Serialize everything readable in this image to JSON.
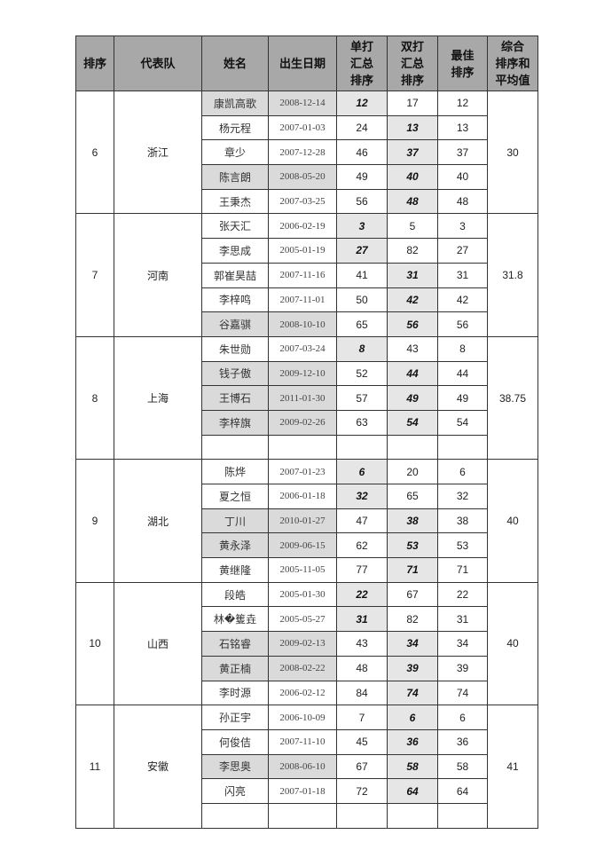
{
  "headers": [
    "排序",
    "代表队",
    "姓名",
    "出生日期",
    "单打\n汇总\n排序",
    "双打\n汇总\n排序",
    "最佳\n排序",
    "综合\n排序和\n平均值"
  ],
  "groups": [
    {
      "rank": "6",
      "team": "浙江",
      "average": "30",
      "players": [
        {
          "name": "康凯高歌",
          "birth": "2008-12-14",
          "singles": "12",
          "doubles": "17",
          "best": "12",
          "shaded": true,
          "best_of": "singles"
        },
        {
          "name": "杨元程",
          "birth": "2007-01-03",
          "singles": "24",
          "doubles": "13",
          "best": "13",
          "shaded": false,
          "best_of": "doubles"
        },
        {
          "name": "章少",
          "birth": "2007-12-28",
          "singles": "46",
          "doubles": "37",
          "best": "37",
          "shaded": false,
          "best_of": "doubles"
        },
        {
          "name": "陈言朗",
          "birth": "2008-05-20",
          "singles": "49",
          "doubles": "40",
          "best": "40",
          "shaded": true,
          "best_of": "doubles"
        },
        {
          "name": "王秉杰",
          "birth": "2007-03-25",
          "singles": "56",
          "doubles": "48",
          "best": "48",
          "shaded": false,
          "best_of": "doubles"
        }
      ]
    },
    {
      "rank": "7",
      "team": "河南",
      "average": "31.8",
      "players": [
        {
          "name": "张天汇",
          "birth": "2006-02-19",
          "singles": "3",
          "doubles": "5",
          "best": "3",
          "shaded": false,
          "best_of": "singles"
        },
        {
          "name": "李思成",
          "birth": "2005-01-19",
          "singles": "27",
          "doubles": "82",
          "best": "27",
          "shaded": false,
          "best_of": "singles"
        },
        {
          "name": "郭崔昊喆",
          "birth": "2007-11-16",
          "singles": "41",
          "doubles": "31",
          "best": "31",
          "shaded": false,
          "best_of": "doubles"
        },
        {
          "name": "李梓鸣",
          "birth": "2007-11-01",
          "singles": "50",
          "doubles": "42",
          "best": "42",
          "shaded": false,
          "best_of": "doubles"
        },
        {
          "name": "谷嘉骐",
          "birth": "2008-10-10",
          "singles": "65",
          "doubles": "56",
          "best": "56",
          "shaded": true,
          "best_of": "doubles"
        }
      ]
    },
    {
      "rank": "8",
      "team": "上海",
      "average": "38.75",
      "players": [
        {
          "name": "朱世勋",
          "birth": "2007-03-24",
          "singles": "8",
          "doubles": "43",
          "best": "8",
          "shaded": false,
          "best_of": "singles"
        },
        {
          "name": "钱子傲",
          "birth": "2009-12-10",
          "singles": "52",
          "doubles": "44",
          "best": "44",
          "shaded": true,
          "best_of": "doubles"
        },
        {
          "name": "王博石",
          "birth": "2011-01-30",
          "singles": "57",
          "doubles": "49",
          "best": "49",
          "shaded": true,
          "best_of": "doubles"
        },
        {
          "name": "李梓旗",
          "birth": "2009-02-26",
          "singles": "63",
          "doubles": "54",
          "best": "54",
          "shaded": true,
          "best_of": "doubles"
        },
        {
          "name": "",
          "birth": "",
          "singles": "",
          "doubles": "",
          "best": "",
          "shaded": false,
          "best_of": ""
        }
      ]
    },
    {
      "rank": "9",
      "team": "湖北",
      "average": "40",
      "players": [
        {
          "name": "陈烨",
          "birth": "2007-01-23",
          "singles": "6",
          "doubles": "20",
          "best": "6",
          "shaded": false,
          "best_of": "singles"
        },
        {
          "name": "夏之恒",
          "birth": "2006-01-18",
          "singles": "32",
          "doubles": "65",
          "best": "32",
          "shaded": false,
          "best_of": "singles"
        },
        {
          "name": "丁川",
          "birth": "2010-01-27",
          "singles": "47",
          "doubles": "38",
          "best": "38",
          "shaded": true,
          "best_of": "doubles"
        },
        {
          "name": "黄永泽",
          "birth": "2009-06-15",
          "singles": "62",
          "doubles": "53",
          "best": "53",
          "shaded": true,
          "best_of": "doubles"
        },
        {
          "name": "黄继隆",
          "birth": "2005-11-05",
          "singles": "77",
          "doubles": "71",
          "best": "71",
          "shaded": false,
          "best_of": "doubles"
        }
      ]
    },
    {
      "rank": "10",
      "team": "山西",
      "average": "40",
      "players": [
        {
          "name": "段皓",
          "birth": "2005-01-30",
          "singles": "22",
          "doubles": "67",
          "best": "22",
          "shaded": false,
          "best_of": "singles"
        },
        {
          "name": "林�篗垚",
          "birth": "2005-05-27",
          "singles": "31",
          "doubles": "82",
          "best": "31",
          "shaded": false,
          "best_of": "singles"
        },
        {
          "name": "石铭睿",
          "birth": "2009-02-13",
          "singles": "43",
          "doubles": "34",
          "best": "34",
          "shaded": true,
          "best_of": "doubles"
        },
        {
          "name": "黄正楠",
          "birth": "2008-02-22",
          "singles": "48",
          "doubles": "39",
          "best": "39",
          "shaded": true,
          "best_of": "doubles"
        },
        {
          "name": "李时源",
          "birth": "2006-02-12",
          "singles": "84",
          "doubles": "74",
          "best": "74",
          "shaded": false,
          "best_of": "doubles"
        }
      ]
    },
    {
      "rank": "11",
      "team": "安徽",
      "average": "41",
      "players": [
        {
          "name": "孙正宇",
          "birth": "2006-10-09",
          "singles": "7",
          "doubles": "6",
          "best": "6",
          "shaded": false,
          "best_of": "doubles"
        },
        {
          "name": "何俊佶",
          "birth": "2007-11-10",
          "singles": "45",
          "doubles": "36",
          "best": "36",
          "shaded": false,
          "best_of": "doubles"
        },
        {
          "name": "李思奥",
          "birth": "2008-06-10",
          "singles": "67",
          "doubles": "58",
          "best": "58",
          "shaded": true,
          "best_of": "doubles"
        },
        {
          "name": "闪亮",
          "birth": "2007-01-18",
          "singles": "72",
          "doubles": "64",
          "best": "64",
          "shaded": false,
          "best_of": "doubles"
        },
        {
          "name": "",
          "birth": "",
          "singles": "",
          "doubles": "",
          "best": "",
          "shaded": false,
          "best_of": ""
        }
      ]
    }
  ]
}
